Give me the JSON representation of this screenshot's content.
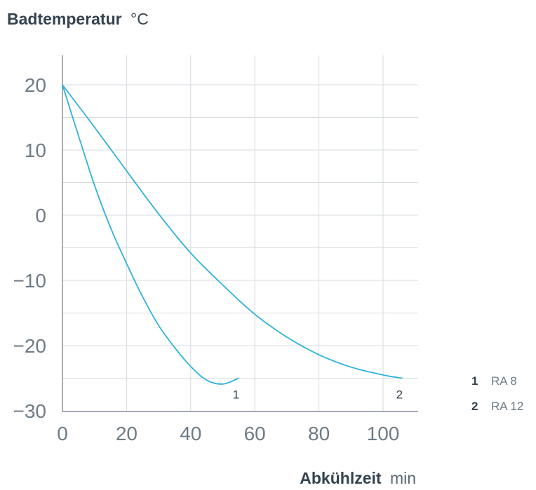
{
  "colors": {
    "series": "#2eb2d9",
    "grid": "#d6dbdf",
    "axis": "#6c7780",
    "text": "#34424f"
  },
  "chart_data": {
    "type": "line",
    "ylabel": "Badtemperatur",
    "yunit": "°C",
    "xlabel": "Abkühlzeit",
    "xunit": "min",
    "xlim": [
      0,
      110
    ],
    "ylim": [
      -30,
      25
    ],
    "xticks": [
      0,
      20,
      40,
      60,
      80,
      100
    ],
    "yticks": [
      20,
      10,
      0,
      -10,
      -20,
      -30
    ],
    "xtick_labels": [
      "0",
      "20",
      "40",
      "60",
      "80",
      "100"
    ],
    "ytick_labels": [
      "20",
      "10",
      "0",
      "−10",
      "−20",
      "−30"
    ],
    "grid": true,
    "legend_position": "right",
    "series": [
      {
        "id": "1",
        "name": "RA 8",
        "x": [
          0,
          5,
          10,
          15,
          20,
          25,
          30,
          35,
          40,
          45,
          50,
          55
        ],
        "y": [
          20,
          12.2,
          4.6,
          -1.9,
          -7.4,
          -12.5,
          -16.9,
          -20.3,
          -23.2,
          -25.3,
          -25.9,
          -25
        ]
      },
      {
        "id": "2",
        "name": "RA 12",
        "x": [
          0,
          10,
          20,
          30,
          40,
          50,
          60,
          70,
          80,
          90,
          100,
          106
        ],
        "y": [
          20,
          13.5,
          6.8,
          0.2,
          -5.8,
          -10.7,
          -15.2,
          -18.7,
          -21.4,
          -23.3,
          -24.5,
          -25
        ]
      }
    ],
    "end_labels": [
      "1",
      "2"
    ]
  },
  "legend": {
    "items": [
      {
        "number": "1",
        "name": "RA 8"
      },
      {
        "number": "2",
        "name": "RA 12"
      }
    ]
  }
}
